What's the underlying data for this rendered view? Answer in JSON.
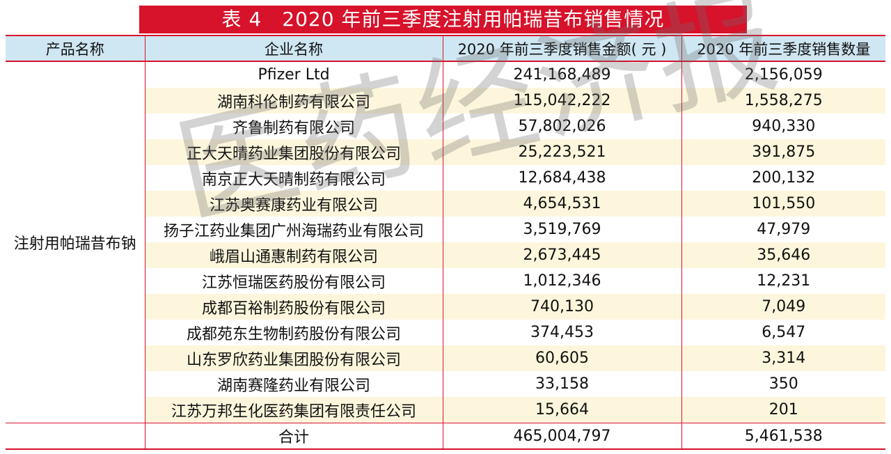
{
  "title": "表 4　2020 年前三季度注射用帕瑞昔布销售情况",
  "headers": [
    "产品名称",
    "企业名称",
    "2020 年前三季度销售金额( 元 )",
    "2020 年前三季度销售数量"
  ],
  "product": "注射用帕瑞昔布钠",
  "rows": [
    {
      "company": "Pfizer  Ltd",
      "amount": "241,168,489",
      "quantity": "2,156,059"
    },
    {
      "company": "湖南科伦制药有限公司",
      "amount": "115,042,222",
      "quantity": "1,558,275"
    },
    {
      "company": "齐鲁制药有限公司",
      "amount": "57,802,026",
      "quantity": "940,330"
    },
    {
      "company": "正大天晴药业集团股份有限公司",
      "amount": "25,223,521",
      "quantity": "391,875"
    },
    {
      "company": "南京正大天晴制药有限公司",
      "amount": "12,684,438",
      "quantity": "200,132"
    },
    {
      "company": "江苏奥赛康药业有限公司",
      "amount": "4,654,531",
      "quantity": "101,550"
    },
    {
      "company": "扬子江药业集团广州海瑞药业有限公司",
      "amount": "3,519,769",
      "quantity": "47,979"
    },
    {
      "company": "峨眉山通惠制药有限公司",
      "amount": "2,673,445",
      "quantity": "35,646"
    },
    {
      "company": "江苏恒瑞医药股份有限公司",
      "amount": "1,012,346",
      "quantity": "12,231"
    },
    {
      "company": "成都百裕制药股份有限公司",
      "amount": "740,130",
      "quantity": "7,049"
    },
    {
      "company": "成都苑东生物制药股份有限公司",
      "amount": "374,453",
      "quantity": "6,547"
    },
    {
      "company": "山东罗欣药业集团股份有限公司",
      "amount": "60,605",
      "quantity": "3,314"
    },
    {
      "company": "湖南赛隆药业有限公司",
      "amount": "33,158",
      "quantity": "350"
    },
    {
      "company": "江苏万邦生化医药集团有限责任公司",
      "amount": "15,664",
      "quantity": "201"
    }
  ],
  "total": {
    "label": "合计",
    "amount": "465,004,797",
    "quantity": "5,461,538"
  },
  "watermark": "医药经济报",
  "colors": {
    "accent_red": "#d7122b",
    "header_blue": "#cfe6f3",
    "stripe_cream": "#fdf6dc"
  }
}
